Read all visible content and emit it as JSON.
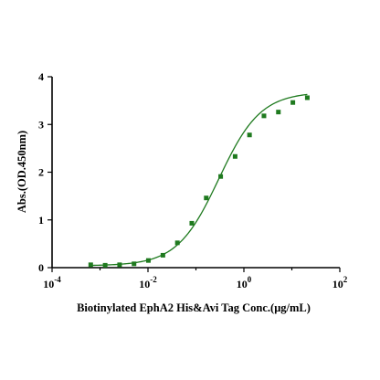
{
  "chart_data": {
    "type": "scatter",
    "xlabel": "Biotinylated EphA2 His&Avi Tag Conc.(μg/mL)",
    "ylabel": "Abs.(OD.450nm)",
    "x_scale": "log10",
    "xlim": [
      0.0001,
      100
    ],
    "ylim": [
      0,
      4
    ],
    "x_ticks": [
      {
        "base": "10",
        "exp": "-4",
        "value": 0.0001
      },
      {
        "base": "10",
        "exp": "-2",
        "value": 0.01
      },
      {
        "base": "10",
        "exp": "0",
        "value": 1
      },
      {
        "base": "10",
        "exp": "2",
        "value": 100
      }
    ],
    "y_ticks": [
      "0",
      "1",
      "2",
      "3",
      "4"
    ],
    "grid": false,
    "legend": "none",
    "point_color": "#1f7a1f",
    "curve_color": "#1e7a1e",
    "points": [
      {
        "x": 0.00064,
        "y": 0.06
      },
      {
        "x": 0.00128,
        "y": 0.05
      },
      {
        "x": 0.00256,
        "y": 0.06
      },
      {
        "x": 0.00512,
        "y": 0.08
      },
      {
        "x": 0.0102,
        "y": 0.15
      },
      {
        "x": 0.0205,
        "y": 0.26
      },
      {
        "x": 0.041,
        "y": 0.52
      },
      {
        "x": 0.082,
        "y": 0.93
      },
      {
        "x": 0.164,
        "y": 1.46
      },
      {
        "x": 0.328,
        "y": 1.91
      },
      {
        "x": 0.656,
        "y": 2.33
      },
      {
        "x": 1.31,
        "y": 2.78
      },
      {
        "x": 2.62,
        "y": 3.18
      },
      {
        "x": 5.24,
        "y": 3.26
      },
      {
        "x": 10.5,
        "y": 3.46
      },
      {
        "x": 21,
        "y": 3.56
      }
    ],
    "fit_curve": {
      "model": "4PL",
      "bottom": 0.04,
      "top": 3.68,
      "ec50": 0.3,
      "hill": 1.0,
      "x_range": [
        0.00064,
        21
      ]
    }
  }
}
